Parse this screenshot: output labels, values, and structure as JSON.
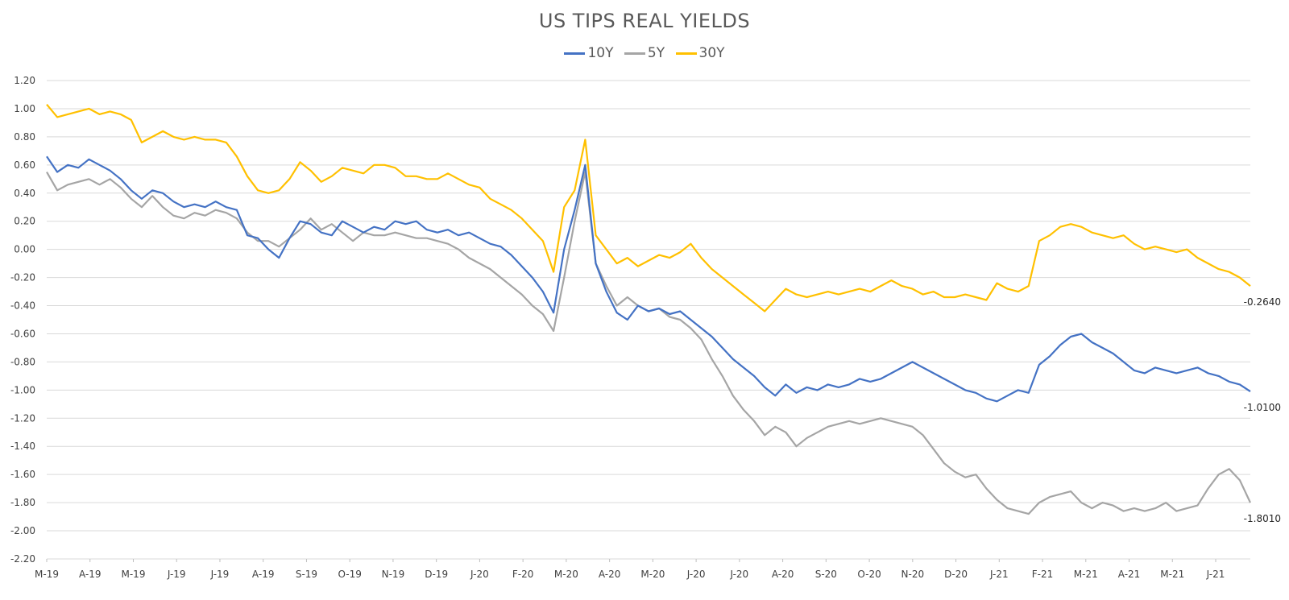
{
  "chart_data": {
    "type": "line",
    "title": "US TIPS REAL YIELDS",
    "xlabel": "",
    "ylabel": "",
    "ylim": [
      -2.2,
      1.2
    ],
    "y_ticks": [
      "1.20",
      "1.00",
      "0.80",
      "0.60",
      "0.40",
      "0.20",
      "0.00",
      "-0.20",
      "-0.40",
      "-0.60",
      "-0.80",
      "-1.00",
      "-1.20",
      "-1.40",
      "-1.60",
      "-1.80",
      "-2.00",
      "-2.20"
    ],
    "x_ticks": [
      "M-19",
      "A-19",
      "M-19",
      "J-19",
      "J-19",
      "A-19",
      "S-19",
      "O-19",
      "N-19",
      "D-19",
      "J-20",
      "F-20",
      "M-20",
      "A-20",
      "M-20",
      "J-20",
      "J-20",
      "A-20",
      "S-20",
      "O-20",
      "N-20",
      "D-20",
      "J-21",
      "F-21",
      "M-21",
      "A-21",
      "M-21",
      "J-21"
    ],
    "grid": true,
    "legend_position": "top-center",
    "series": [
      {
        "name": "10Y",
        "color": "#4472C4",
        "end_label": "-1.0100",
        "values": [
          0.66,
          0.55,
          0.6,
          0.58,
          0.64,
          0.6,
          0.56,
          0.5,
          0.42,
          0.36,
          0.42,
          0.4,
          0.34,
          0.3,
          0.32,
          0.3,
          0.34,
          0.3,
          0.28,
          0.1,
          0.08,
          0.0,
          -0.06,
          0.08,
          0.2,
          0.18,
          0.12,
          0.1,
          0.2,
          0.16,
          0.12,
          0.16,
          0.14,
          0.2,
          0.18,
          0.2,
          0.14,
          0.12,
          0.14,
          0.1,
          0.12,
          0.08,
          0.04,
          0.02,
          -0.04,
          -0.12,
          -0.2,
          -0.3,
          -0.45,
          0.0,
          0.28,
          0.6,
          -0.1,
          -0.3,
          -0.45,
          -0.5,
          -0.4,
          -0.44,
          -0.42,
          -0.46,
          -0.44,
          -0.5,
          -0.56,
          -0.62,
          -0.7,
          -0.78,
          -0.84,
          -0.9,
          -0.98,
          -1.04,
          -0.96,
          -1.02,
          -0.98,
          -1.0,
          -0.96,
          -0.98,
          -0.96,
          -0.92,
          -0.94,
          -0.92,
          -0.88,
          -0.84,
          -0.8,
          -0.84,
          -0.88,
          -0.92,
          -0.96,
          -1.0,
          -1.02,
          -1.06,
          -1.08,
          -1.04,
          -1.0,
          -1.02,
          -0.82,
          -0.76,
          -0.68,
          -0.62,
          -0.6,
          -0.66,
          -0.7,
          -0.74,
          -0.8,
          -0.86,
          -0.88,
          -0.84,
          -0.86,
          -0.88,
          -0.86,
          -0.84,
          -0.88,
          -0.9,
          -0.94,
          -0.96,
          -1.01
        ]
      },
      {
        "name": "5Y",
        "color": "#A5A5A5",
        "end_label": "-1.8010",
        "values": [
          0.55,
          0.42,
          0.46,
          0.48,
          0.5,
          0.46,
          0.5,
          0.44,
          0.36,
          0.3,
          0.38,
          0.3,
          0.24,
          0.22,
          0.26,
          0.24,
          0.28,
          0.26,
          0.22,
          0.12,
          0.06,
          0.06,
          0.02,
          0.08,
          0.14,
          0.22,
          0.14,
          0.18,
          0.12,
          0.06,
          0.12,
          0.1,
          0.1,
          0.12,
          0.1,
          0.08,
          0.08,
          0.06,
          0.04,
          0.0,
          -0.06,
          -0.1,
          -0.14,
          -0.2,
          -0.26,
          -0.32,
          -0.4,
          -0.46,
          -0.58,
          -0.2,
          0.2,
          0.55,
          -0.1,
          -0.26,
          -0.4,
          -0.34,
          -0.4,
          -0.44,
          -0.42,
          -0.48,
          -0.5,
          -0.56,
          -0.64,
          -0.78,
          -0.9,
          -1.04,
          -1.14,
          -1.22,
          -1.32,
          -1.26,
          -1.3,
          -1.4,
          -1.34,
          -1.3,
          -1.26,
          -1.24,
          -1.22,
          -1.24,
          -1.22,
          -1.2,
          -1.22,
          -1.24,
          -1.26,
          -1.32,
          -1.42,
          -1.52,
          -1.58,
          -1.62,
          -1.6,
          -1.7,
          -1.78,
          -1.84,
          -1.86,
          -1.88,
          -1.8,
          -1.76,
          -1.74,
          -1.72,
          -1.8,
          -1.84,
          -1.8,
          -1.82,
          -1.86,
          -1.84,
          -1.86,
          -1.84,
          -1.8,
          -1.86,
          -1.84,
          -1.82,
          -1.7,
          -1.6,
          -1.56,
          -1.64,
          -1.8
        ]
      },
      {
        "name": "30Y",
        "color": "#FFC000",
        "end_label": "-0.2640",
        "values": [
          1.03,
          0.94,
          0.96,
          0.98,
          1.0,
          0.96,
          0.98,
          0.96,
          0.92,
          0.76,
          0.8,
          0.84,
          0.8,
          0.78,
          0.8,
          0.78,
          0.78,
          0.76,
          0.66,
          0.52,
          0.42,
          0.4,
          0.42,
          0.5,
          0.62,
          0.56,
          0.48,
          0.52,
          0.58,
          0.56,
          0.54,
          0.6,
          0.6,
          0.58,
          0.52,
          0.52,
          0.5,
          0.5,
          0.54,
          0.5,
          0.46,
          0.44,
          0.36,
          0.32,
          0.28,
          0.22,
          0.14,
          0.06,
          -0.16,
          0.3,
          0.42,
          0.78,
          0.1,
          0.0,
          -0.1,
          -0.06,
          -0.12,
          -0.08,
          -0.04,
          -0.06,
          -0.02,
          0.04,
          -0.06,
          -0.14,
          -0.2,
          -0.26,
          -0.32,
          -0.38,
          -0.44,
          -0.36,
          -0.28,
          -0.32,
          -0.34,
          -0.32,
          -0.3,
          -0.32,
          -0.3,
          -0.28,
          -0.3,
          -0.26,
          -0.22,
          -0.26,
          -0.28,
          -0.32,
          -0.3,
          -0.34,
          -0.34,
          -0.32,
          -0.34,
          -0.36,
          -0.24,
          -0.28,
          -0.3,
          -0.26,
          0.06,
          0.1,
          0.16,
          0.18,
          0.16,
          0.12,
          0.1,
          0.08,
          0.1,
          0.04,
          0.0,
          0.02,
          0.0,
          -0.02,
          0.0,
          -0.06,
          -0.1,
          -0.14,
          -0.16,
          -0.2,
          -0.26
        ]
      }
    ]
  }
}
